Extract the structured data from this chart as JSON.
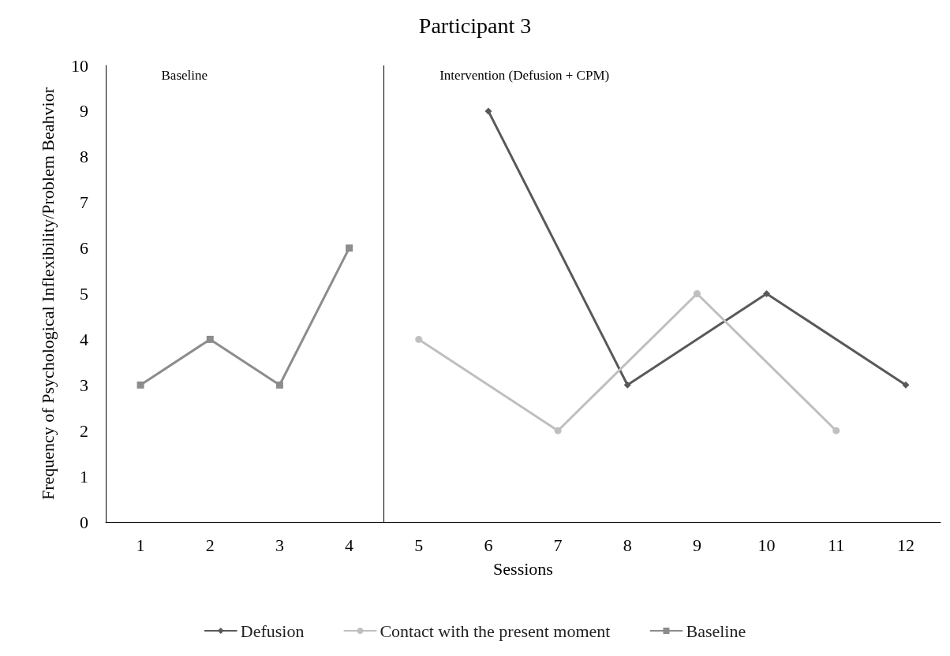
{
  "chart_data": {
    "type": "line",
    "title": "Participant 3",
    "xlabel": "Sessions",
    "ylabel": "Frequency of Psychological Inflexibility/Problem Beahvior",
    "xlim": [
      0.5,
      12.5
    ],
    "xticks": [
      1,
      2,
      3,
      4,
      5,
      6,
      7,
      8,
      9,
      10,
      11,
      12
    ],
    "ylim": [
      0,
      10
    ],
    "yticks": [
      0,
      1,
      2,
      3,
      4,
      5,
      6,
      7,
      8,
      9,
      10
    ],
    "grid": false,
    "legend": "bottom",
    "series": [
      {
        "name": "Defusion",
        "color": "#595959",
        "marker": "diamond",
        "x": [
          6,
          8,
          10,
          12
        ],
        "values": [
          9,
          3,
          5,
          3
        ]
      },
      {
        "name": "Contact with the present moment",
        "color": "#bfbfbf",
        "marker": "circle",
        "x": [
          5,
          7,
          9,
          11
        ],
        "values": [
          4,
          2,
          5,
          2
        ]
      },
      {
        "name": "Baseline",
        "color": "#8c8c8c",
        "marker": "square",
        "x": [
          1,
          2,
          3,
          4
        ],
        "values": [
          3,
          4,
          3,
          6
        ]
      }
    ],
    "ref_lines": [
      {
        "axis": "x",
        "value": 4.5,
        "color": "#000000"
      }
    ],
    "annotations": [
      "Baseline",
      "Intervention (Defusion + CPM)"
    ]
  }
}
